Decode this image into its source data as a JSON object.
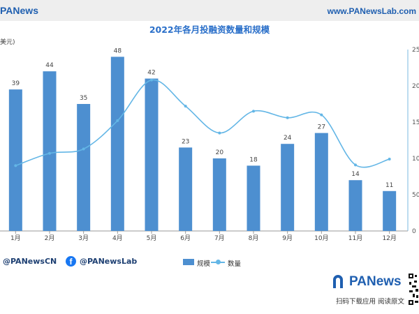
{
  "header": {
    "brand": "PANews",
    "site": "www.PANewsLab.com"
  },
  "chart_data": {
    "type": "bar",
    "title": "2022年各月投融资数量和规模",
    "ylabel_left": "美元)",
    "categories": [
      "1月",
      "2月",
      "3月",
      "4月",
      "5月",
      "6月",
      "7月",
      "8月",
      "9月",
      "10月",
      "11月",
      "12月"
    ],
    "series": [
      {
        "name": "规模",
        "type": "bar",
        "axis": "left",
        "values": [
          39,
          44,
          35,
          48,
          42,
          23,
          20,
          18,
          24,
          27,
          14,
          11
        ]
      },
      {
        "name": "数量",
        "type": "line",
        "axis": "right",
        "values": [
          90,
          107,
          113,
          152,
          208,
          172,
          135,
          165,
          156,
          160,
          91,
          99
        ]
      }
    ],
    "ylim_left": [
      0,
      50
    ],
    "ylim_right": [
      0,
      250
    ],
    "right_ticks": [
      "0",
      "50",
      "100",
      "150",
      "200",
      "250"
    ],
    "legend_position": "bottom",
    "colors": {
      "bar": "#4d8fd0",
      "line": "#63b6e6",
      "accent": "#1f5fb0"
    }
  },
  "footer": {
    "twitter": "@PANewsCN",
    "facebook": "@PANewsLab",
    "brand": "PANews",
    "slogan": "扫码下载应用  阅读原文"
  }
}
